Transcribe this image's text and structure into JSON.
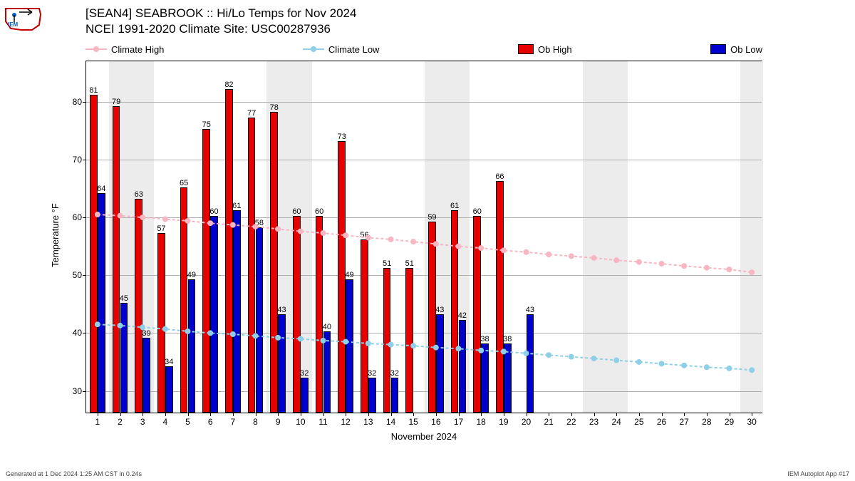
{
  "title_line1": "[SEAN4] SEABROOK :: Hi/Lo Temps for Nov 2024",
  "title_line2": "NCEI 1991-2020 Climate Site: USC00287936",
  "ylabel": "Temperature °F",
  "xlabel": "November 2024",
  "footer_left": "Generated at 1 Dec 2024 1:25 AM CST in 0.24s",
  "footer_right": "IEM Autoplot App #17",
  "legend": {
    "climate_high": "Climate High",
    "climate_low": "Climate Low",
    "ob_high": "Ob High",
    "ob_low": "Ob Low"
  },
  "colors": {
    "climate_high": "#f7b6c2",
    "climate_low": "#8fd0e8",
    "ob_high": "#e60000",
    "ob_low": "#0000cc",
    "grid": "#b0b0b0",
    "weekend": "#ececec",
    "bg": "#ffffff",
    "text": "#000000"
  },
  "chart": {
    "type": "bar_and_line",
    "ylim": [
      26,
      87
    ],
    "yticks": [
      30,
      40,
      50,
      60,
      70,
      80
    ],
    "days": [
      1,
      2,
      3,
      4,
      5,
      6,
      7,
      8,
      9,
      10,
      11,
      12,
      13,
      14,
      15,
      16,
      17,
      18,
      19,
      20,
      21,
      22,
      23,
      24,
      25,
      26,
      27,
      28,
      29,
      30
    ],
    "weekend_days": [
      2,
      3,
      9,
      10,
      16,
      17,
      23,
      24,
      30
    ],
    "ob_high": [
      81,
      79,
      63,
      57,
      65,
      75,
      82,
      77,
      78,
      60,
      60,
      73,
      56,
      51,
      51,
      59,
      61,
      60,
      66,
      null,
      null,
      null,
      null,
      null,
      null,
      null,
      null,
      null,
      null,
      null
    ],
    "ob_low": [
      64,
      45,
      39,
      34,
      49,
      60,
      61,
      58,
      43,
      32,
      40,
      49,
      32,
      32,
      null,
      43,
      42,
      38,
      38,
      43,
      null,
      null,
      null,
      null,
      null,
      null,
      null,
      null,
      null,
      null
    ],
    "climate_high": [
      60.5,
      60.3,
      60.0,
      59.7,
      59.4,
      59.0,
      58.7,
      58.4,
      58.0,
      57.6,
      57.3,
      56.9,
      56.5,
      56.2,
      55.8,
      55.4,
      55.0,
      54.7,
      54.3,
      54.0,
      53.6,
      53.3,
      53.0,
      52.6,
      52.3,
      52.0,
      51.6,
      51.3,
      51.0,
      50.5
    ],
    "climate_low": [
      41.5,
      41.3,
      41.0,
      40.7,
      40.3,
      40.0,
      39.8,
      39.5,
      39.2,
      39.0,
      38.7,
      38.5,
      38.2,
      38.0,
      37.8,
      37.5,
      37.3,
      37.0,
      36.8,
      36.5,
      36.2,
      35.9,
      35.6,
      35.3,
      35.0,
      34.7,
      34.4,
      34.1,
      33.9,
      33.6
    ],
    "bar_width_rel": 0.34,
    "label_fontsize": 11
  }
}
